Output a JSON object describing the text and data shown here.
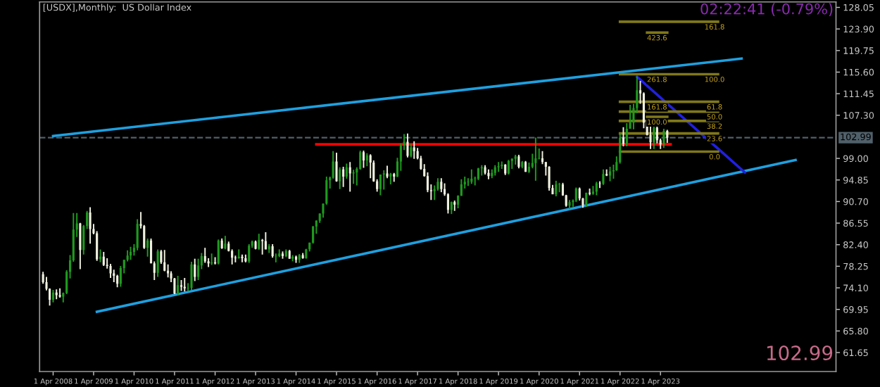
{
  "chart_data": {
    "type": "candlestick",
    "title": "[USDX],Monthly:  US Dollar Index",
    "annotations": [
      "02:22:41 (-0.79%)",
      "102.99",
      {
        "text": "161.8",
        "x": "2024-08",
        "y": 125.3
      },
      {
        "text": "423.6",
        "x": "2023-03",
        "y": 123.2
      },
      {
        "text": "261.8",
        "x": "2023-03",
        "y": 115.2
      },
      {
        "text": "100.0",
        "x": "2024-08",
        "y": 115.2
      },
      {
        "text": "161.8",
        "x": "2023-03",
        "y": 109.9
      },
      {
        "text": "61.8",
        "x": "2024-08",
        "y": 109.9
      },
      {
        "text": "50.0",
        "x": "2024-08",
        "y": 108.0
      },
      {
        "text": "100.0",
        "x": "2023-03",
        "y": 107.0
      },
      {
        "text": "38.2",
        "x": "2024-08",
        "y": 106.2
      },
      {
        "text": "23.6",
        "x": "2024-08",
        "y": 103.8
      },
      {
        "text": "0.0",
        "x": "2024-08",
        "y": 100.3
      }
    ],
    "x": [
      "2008-01",
      "2008-02",
      "2008-03",
      "2008-04",
      "2008-05",
      "2008-06",
      "2008-07",
      "2008-08",
      "2008-09",
      "2008-10",
      "2008-11",
      "2008-12",
      "2009-01",
      "2009-02",
      "2009-03",
      "2009-04",
      "2009-05",
      "2009-06",
      "2009-07",
      "2009-08",
      "2009-09",
      "2009-10",
      "2009-11",
      "2009-12",
      "2010-01",
      "2010-02",
      "2010-03",
      "2010-04",
      "2010-05",
      "2010-06",
      "2010-07",
      "2010-08",
      "2010-09",
      "2010-10",
      "2010-11",
      "2010-12",
      "2011-01",
      "2011-02",
      "2011-03",
      "2011-04",
      "2011-05",
      "2011-06",
      "2011-07",
      "2011-08",
      "2011-09",
      "2011-10",
      "2011-11",
      "2011-12",
      "2012-01",
      "2012-02",
      "2012-03",
      "2012-04",
      "2012-05",
      "2012-06",
      "2012-07",
      "2012-08",
      "2012-09",
      "2012-10",
      "2012-11",
      "2012-12",
      "2013-01",
      "2013-02",
      "2013-03",
      "2013-04",
      "2013-05",
      "2013-06",
      "2013-07",
      "2013-08",
      "2013-09",
      "2013-10",
      "2013-11",
      "2013-12",
      "2014-01",
      "2014-02",
      "2014-03",
      "2014-04",
      "2014-05",
      "2014-06",
      "2014-07",
      "2014-08",
      "2014-09",
      "2014-10",
      "2014-11",
      "2014-12",
      "2015-01",
      "2015-02",
      "2015-03",
      "2015-04",
      "2015-05",
      "2015-06",
      "2015-07",
      "2015-08",
      "2015-09",
      "2015-10",
      "2015-11",
      "2015-12",
      "2016-01",
      "2016-02",
      "2016-03",
      "2016-04",
      "2016-05",
      "2016-06",
      "2016-07",
      "2016-08",
      "2016-09",
      "2016-10",
      "2016-11",
      "2016-12",
      "2017-01",
      "2017-02",
      "2017-03",
      "2017-04",
      "2017-05",
      "2017-06",
      "2017-07",
      "2017-08",
      "2017-09",
      "2017-10",
      "2017-11",
      "2017-12",
      "2018-01",
      "2018-02",
      "2018-03",
      "2018-04",
      "2018-05",
      "2018-06",
      "2018-07",
      "2018-08",
      "2018-09",
      "2018-10",
      "2018-11",
      "2018-12",
      "2019-01",
      "2019-02",
      "2019-03",
      "2019-04",
      "2019-05",
      "2019-06",
      "2019-07",
      "2019-08",
      "2019-09",
      "2019-10",
      "2019-11",
      "2019-12",
      "2020-01",
      "2020-02",
      "2020-03",
      "2020-04",
      "2020-05",
      "2020-06",
      "2020-07",
      "2020-08",
      "2020-09",
      "2020-10",
      "2020-11",
      "2020-12",
      "2021-01",
      "2021-02",
      "2021-03",
      "2021-04",
      "2021-05",
      "2021-06",
      "2021-07",
      "2021-08",
      "2021-09",
      "2021-10",
      "2021-11",
      "2021-12",
      "2022-01",
      "2022-02",
      "2022-03",
      "2022-04",
      "2022-05",
      "2022-06",
      "2022-07",
      "2022-08",
      "2022-09",
      "2022-10",
      "2022-11",
      "2022-12",
      "2023-01",
      "2023-02",
      "2023-03",
      "2023-04",
      "2023-05",
      "2023-06"
    ],
    "ohlc": [
      [
        76.7,
        77.2,
        74.9,
        75.2
      ],
      [
        75.2,
        76.2,
        73.6,
        73.9
      ],
      [
        73.9,
        74.0,
        70.7,
        71.8
      ],
      [
        71.8,
        73.7,
        71.3,
        73.2
      ],
      [
        73.2,
        73.8,
        71.9,
        72.7
      ],
      [
        72.7,
        74.0,
        72.2,
        72.4
      ],
      [
        72.4,
        73.2,
        71.3,
        73.1
      ],
      [
        73.1,
        77.5,
        72.9,
        77.2
      ],
      [
        77.2,
        80.4,
        75.9,
        79.4
      ],
      [
        79.4,
        88.5,
        79.1,
        85.3
      ],
      [
        85.3,
        88.5,
        83.9,
        86.5
      ],
      [
        86.5,
        86.6,
        77.7,
        81.4
      ],
      [
        81.4,
        86.2,
        80.5,
        86.0
      ],
      [
        86.0,
        88.9,
        85.4,
        88.6
      ],
      [
        88.6,
        89.6,
        82.6,
        85.4
      ],
      [
        85.4,
        86.4,
        84.4,
        84.6
      ],
      [
        84.6,
        85.0,
        79.3,
        79.6
      ],
      [
        79.6,
        81.5,
        79.0,
        80.1
      ],
      [
        80.1,
        81.0,
        78.3,
        78.5
      ],
      [
        78.5,
        79.8,
        77.8,
        78.3
      ],
      [
        78.3,
        78.7,
        76.0,
        76.9
      ],
      [
        76.9,
        77.6,
        75.2,
        76.4
      ],
      [
        76.4,
        76.6,
        74.2,
        74.9
      ],
      [
        74.9,
        78.3,
        74.3,
        77.9
      ],
      [
        77.9,
        79.5,
        76.9,
        79.5
      ],
      [
        79.5,
        81.3,
        79.2,
        80.3
      ],
      [
        80.3,
        82.0,
        79.5,
        81.0
      ],
      [
        81.0,
        82.5,
        80.3,
        81.8
      ],
      [
        81.8,
        87.3,
        81.3,
        86.4
      ],
      [
        86.4,
        88.7,
        85.5,
        86.0
      ],
      [
        86.0,
        86.2,
        81.6,
        81.8
      ],
      [
        81.8,
        83.6,
        80.1,
        83.2
      ],
      [
        83.2,
        83.6,
        78.8,
        78.8
      ],
      [
        78.8,
        79.2,
        75.6,
        77.0
      ],
      [
        77.0,
        81.5,
        76.2,
        81.1
      ],
      [
        81.1,
        81.4,
        78.7,
        79.0
      ],
      [
        79.0,
        81.4,
        77.3,
        77.4
      ],
      [
        77.4,
        78.6,
        76.1,
        76.9
      ],
      [
        76.9,
        77.3,
        75.2,
        75.9
      ],
      [
        75.9,
        76.0,
        72.9,
        73.0
      ],
      [
        73.0,
        76.4,
        72.7,
        74.6
      ],
      [
        74.6,
        75.6,
        73.5,
        74.3
      ],
      [
        74.3,
        76.0,
        73.4,
        74.0
      ],
      [
        74.0,
        75.0,
        73.5,
        74.1
      ],
      [
        74.1,
        79.1,
        73.7,
        78.6
      ],
      [
        78.6,
        79.7,
        75.4,
        76.2
      ],
      [
        76.2,
        79.7,
        75.6,
        78.4
      ],
      [
        78.4,
        80.8,
        77.7,
        80.2
      ],
      [
        80.2,
        81.8,
        78.9,
        79.2
      ],
      [
        79.2,
        79.8,
        78.1,
        78.8
      ],
      [
        78.8,
        80.7,
        78.5,
        79.0
      ],
      [
        79.0,
        80.0,
        78.6,
        78.8
      ],
      [
        78.8,
        83.4,
        78.6,
        83.2
      ],
      [
        83.2,
        83.6,
        81.6,
        81.7
      ],
      [
        81.7,
        84.1,
        81.5,
        82.6
      ],
      [
        82.6,
        83.0,
        81.1,
        81.2
      ],
      [
        81.2,
        81.5,
        78.6,
        79.9
      ],
      [
        79.9,
        80.3,
        79.0,
        79.8
      ],
      [
        79.8,
        81.5,
        79.7,
        80.1
      ],
      [
        80.1,
        80.5,
        79.0,
        79.8
      ],
      [
        79.8,
        80.5,
        79.0,
        79.2
      ],
      [
        79.2,
        82.5,
        78.9,
        82.2
      ],
      [
        82.2,
        83.2,
        81.8,
        83.0
      ],
      [
        83.0,
        83.2,
        81.5,
        81.6
      ],
      [
        81.6,
        84.5,
        81.4,
        83.3
      ],
      [
        83.3,
        83.5,
        80.5,
        83.1
      ],
      [
        83.1,
        84.8,
        81.5,
        81.5
      ],
      [
        81.5,
        82.5,
        80.8,
        82.1
      ],
      [
        82.1,
        82.5,
        79.9,
        80.2
      ],
      [
        80.2,
        80.7,
        79.0,
        80.2
      ],
      [
        80.2,
        81.5,
        80.0,
        80.7
      ],
      [
        80.7,
        81.1,
        79.7,
        80.2
      ],
      [
        80.2,
        81.5,
        80.0,
        81.2
      ],
      [
        81.2,
        81.4,
        79.7,
        79.7
      ],
      [
        79.7,
        80.4,
        79.2,
        80.1
      ],
      [
        80.1,
        80.3,
        78.9,
        79.5
      ],
      [
        79.5,
        80.6,
        78.9,
        80.4
      ],
      [
        80.4,
        80.8,
        79.7,
        79.8
      ],
      [
        79.8,
        81.6,
        79.7,
        81.5
      ],
      [
        81.5,
        82.8,
        81.1,
        82.8
      ],
      [
        82.8,
        86.0,
        82.6,
        85.9
      ],
      [
        85.9,
        87.1,
        84.5,
        87.0
      ],
      [
        87.0,
        88.4,
        86.6,
        88.4
      ],
      [
        88.4,
        90.3,
        87.6,
        90.3
      ],
      [
        90.3,
        95.5,
        90.1,
        94.8
      ],
      [
        94.8,
        95.5,
        93.2,
        95.3
      ],
      [
        95.3,
        100.4,
        95.1,
        98.4
      ],
      [
        98.4,
        100.1,
        94.5,
        94.6
      ],
      [
        94.6,
        97.3,
        93.1,
        96.9
      ],
      [
        96.9,
        97.4,
        93.5,
        95.5
      ],
      [
        95.5,
        98.0,
        95.1,
        97.3
      ],
      [
        97.3,
        98.3,
        92.6,
        96.1
      ],
      [
        96.1,
        96.8,
        94.1,
        96.3
      ],
      [
        96.3,
        97.3,
        93.8,
        97.0
      ],
      [
        97.0,
        100.5,
        96.8,
        100.2
      ],
      [
        100.2,
        100.5,
        97.2,
        98.6
      ],
      [
        98.6,
        100.0,
        97.5,
        99.6
      ],
      [
        99.6,
        99.8,
        95.2,
        98.2
      ],
      [
        98.2,
        98.6,
        94.5,
        94.6
      ],
      [
        94.6,
        95.0,
        92.6,
        93.1
      ],
      [
        93.1,
        95.9,
        91.9,
        95.9
      ],
      [
        95.9,
        96.7,
        93.0,
        96.1
      ],
      [
        96.1,
        97.6,
        95.2,
        95.5
      ],
      [
        95.5,
        96.2,
        94.0,
        96.0
      ],
      [
        96.0,
        96.2,
        94.5,
        95.5
      ],
      [
        95.5,
        99.1,
        95.4,
        98.4
      ],
      [
        98.4,
        101.9,
        96.6,
        101.5
      ],
      [
        101.5,
        103.7,
        100.6,
        102.2
      ],
      [
        102.2,
        103.8,
        99.2,
        99.5
      ],
      [
        99.5,
        101.8,
        99.2,
        101.1
      ],
      [
        101.1,
        102.3,
        98.9,
        100.4
      ],
      [
        100.4,
        101.0,
        98.8,
        99.0
      ],
      [
        99.0,
        99.5,
        96.8,
        97.0
      ],
      [
        97.0,
        97.9,
        95.5,
        95.6
      ],
      [
        95.6,
        96.3,
        92.5,
        92.9
      ],
      [
        92.9,
        94.0,
        91.0,
        92.7
      ],
      [
        92.7,
        93.8,
        91.0,
        93.1
      ],
      [
        93.1,
        95.2,
        92.8,
        94.5
      ],
      [
        94.5,
        95.2,
        92.5,
        93.1
      ],
      [
        93.1,
        94.2,
        91.8,
        92.1
      ],
      [
        92.1,
        92.3,
        88.4,
        89.1
      ],
      [
        89.1,
        90.7,
        88.3,
        90.6
      ],
      [
        90.6,
        90.9,
        88.9,
        90.1
      ],
      [
        90.1,
        91.9,
        89.4,
        91.8
      ],
      [
        91.8,
        95.0,
        91.8,
        94.0
      ],
      [
        94.0,
        95.5,
        93.2,
        94.5
      ],
      [
        94.5,
        95.2,
        93.7,
        94.5
      ],
      [
        94.5,
        96.9,
        94.1,
        95.1
      ],
      [
        95.1,
        95.5,
        93.8,
        95.1
      ],
      [
        95.1,
        97.2,
        94.8,
        97.1
      ],
      [
        97.1,
        97.7,
        95.7,
        97.3
      ],
      [
        97.3,
        97.7,
        95.9,
        96.2
      ],
      [
        96.2,
        96.9,
        95.0,
        95.6
      ],
      [
        95.6,
        96.9,
        95.2,
        96.2
      ],
      [
        96.2,
        97.7,
        95.7,
        97.3
      ],
      [
        97.3,
        98.3,
        96.4,
        97.5
      ],
      [
        97.5,
        98.4,
        97.0,
        97.8
      ],
      [
        97.8,
        97.9,
        95.8,
        96.1
      ],
      [
        96.1,
        98.7,
        95.9,
        98.5
      ],
      [
        98.5,
        99.0,
        97.0,
        98.9
      ],
      [
        98.9,
        99.7,
        97.8,
        99.4
      ],
      [
        99.4,
        99.7,
        97.1,
        97.4
      ],
      [
        97.4,
        98.5,
        97.1,
        98.3
      ],
      [
        98.3,
        98.5,
        96.4,
        96.4
      ],
      [
        96.4,
        98.2,
        96.2,
        97.4
      ],
      [
        97.4,
        99.9,
        97.1,
        98.1
      ],
      [
        98.1,
        103.0,
        94.7,
        99.0
      ],
      [
        99.0,
        100.9,
        98.8,
        99.0
      ],
      [
        99.0,
        100.4,
        97.9,
        98.3
      ],
      [
        98.3,
        98.3,
        95.7,
        97.4
      ],
      [
        97.4,
        97.5,
        92.8,
        93.3
      ],
      [
        93.3,
        93.9,
        92.1,
        92.1
      ],
      [
        92.1,
        94.7,
        91.7,
        94.0
      ],
      [
        94.0,
        94.3,
        92.5,
        94.0
      ],
      [
        94.0,
        94.3,
        91.8,
        91.9
      ],
      [
        91.9,
        92.0,
        89.7,
        89.9
      ],
      [
        89.9,
        91.0,
        89.2,
        90.6
      ],
      [
        90.6,
        91.1,
        89.7,
        90.9
      ],
      [
        90.9,
        93.4,
        90.6,
        93.2
      ],
      [
        93.2,
        93.4,
        90.9,
        91.3
      ],
      [
        91.3,
        91.4,
        89.5,
        90.0
      ],
      [
        90.0,
        92.4,
        89.7,
        92.4
      ],
      [
        92.4,
        93.2,
        91.9,
        92.2
      ],
      [
        92.2,
        93.7,
        92.0,
        92.6
      ],
      [
        92.6,
        94.5,
        91.9,
        94.2
      ],
      [
        94.2,
        94.6,
        93.3,
        94.1
      ],
      [
        94.1,
        96.9,
        93.9,
        96.0
      ],
      [
        96.0,
        96.9,
        95.6,
        95.7
      ],
      [
        95.7,
        97.4,
        94.6,
        96.5
      ],
      [
        96.5,
        97.8,
        95.1,
        96.7
      ],
      [
        96.7,
        99.4,
        96.6,
        98.3
      ],
      [
        98.3,
        103.9,
        98.0,
        103.0
      ],
      [
        103.0,
        105.0,
        101.3,
        101.8
      ],
      [
        101.8,
        105.8,
        101.3,
        104.7
      ],
      [
        104.7,
        109.3,
        104.7,
        105.9
      ],
      [
        105.9,
        109.5,
        104.6,
        108.7
      ],
      [
        108.7,
        114.8,
        107.7,
        112.1
      ],
      [
        112.1,
        113.9,
        109.5,
        111.5
      ],
      [
        111.5,
        111.7,
        104.8,
        105.9
      ],
      [
        105.9,
        106.0,
        103.4,
        103.5
      ],
      [
        103.5,
        105.6,
        100.8,
        102.1
      ],
      [
        102.1,
        105.4,
        100.8,
        104.9
      ],
      [
        104.9,
        105.9,
        101.9,
        102.5
      ],
      [
        102.5,
        102.8,
        100.8,
        101.7
      ],
      [
        101.7,
        104.7,
        101.0,
        104.3
      ],
      [
        104.3,
        104.5,
        102.0,
        102.99
      ]
    ],
    "series": [
      {
        "type": "line",
        "color": "#1ea0e0",
        "x": [
          "2008-04",
          "2025-04"
        ],
        "values": [
          103.3,
          118.2
        ]
      },
      {
        "type": "line",
        "color": "#1ea0e0",
        "x": [
          "2009-05",
          "2026-08"
        ],
        "values": [
          69.5,
          98.7
        ]
      },
      {
        "type": "line",
        "color": "#2020e0",
        "x": [
          "2022-09",
          "2025-05"
        ],
        "values": [
          114.7,
          96.3
        ]
      },
      {
        "type": "line",
        "color": "#ff0000",
        "x": [
          "2014-10",
          "2023-07"
        ],
        "values": [
          101.7,
          101.7
        ]
      },
      {
        "type": "line",
        "color": "#807818",
        "x": [
          "2022-04",
          "2024-09"
        ],
        "values": [
          125.3,
          125.3
        ]
      },
      {
        "type": "line",
        "color": "#807818",
        "x": [
          "2022-12",
          "2023-06"
        ],
        "values": [
          123.2,
          123.2
        ]
      },
      {
        "type": "line",
        "color": "#807818",
        "x": [
          "2022-12",
          "2023-06"
        ],
        "values": [
          107.0,
          107.0
        ]
      },
      {
        "type": "line",
        "color": "#807818",
        "x": [
          "2022-04",
          "2024-09"
        ],
        "values": [
          115.2,
          115.2
        ]
      },
      {
        "type": "line",
        "color": "#807818",
        "x": [
          "2022-04",
          "2024-09"
        ],
        "values": [
          109.9,
          109.9
        ]
      },
      {
        "type": "line",
        "color": "#807818",
        "x": [
          "2022-04",
          "2024-09"
        ],
        "values": [
          108.0,
          108.0
        ]
      },
      {
        "type": "line",
        "color": "#807818",
        "x": [
          "2022-04",
          "2024-09"
        ],
        "values": [
          106.2,
          106.2
        ]
      },
      {
        "type": "line",
        "color": "#807818",
        "x": [
          "2022-04",
          "2024-09"
        ],
        "values": [
          103.8,
          103.8
        ]
      },
      {
        "type": "line",
        "color": "#807818",
        "x": [
          "2022-04",
          "2024-09"
        ],
        "values": [
          100.3,
          100.3
        ]
      }
    ],
    "ref_lines": [
      {
        "axis": "y",
        "value": 102.99,
        "label": "102.99",
        "color": "#50606a",
        "line_style": "dashed"
      }
    ],
    "xlim": [
      "2007-12-01",
      "2027-08"
    ],
    "xticks": [
      {
        "value": "2008-04-01",
        "label": "1 Apr 2008"
      },
      {
        "value": "2009-04-01",
        "label": "1 Apr 2009"
      },
      {
        "value": "2010-04-01",
        "label": "1 Apr 2010"
      },
      {
        "value": "2011-04-01",
        "label": "1 Apr 2011"
      },
      {
        "value": "2012-04-01",
        "label": "1 Apr 2012"
      },
      {
        "value": "2013-04-01",
        "label": "1 Apr 2013"
      },
      {
        "value": "2014-04-01",
        "label": "1 Apr 2014"
      },
      {
        "value": "2015-04-01",
        "label": "1 Apr 2015"
      },
      {
        "value": "2016-04-01",
        "label": "1 Apr 2016"
      },
      {
        "value": "2017-04-01",
        "label": "1 Apr 2017"
      },
      {
        "value": "2018-04-01",
        "label": "1 Apr 2018"
      },
      {
        "value": "2019-04-01",
        "label": "1 Apr 2019"
      },
      {
        "value": "2020-04-01",
        "label": "1 Apr 2020"
      },
      {
        "value": "2021-04-01",
        "label": "1 Apr 2021"
      },
      {
        "value": "2022-04-01",
        "label": "1 Apr 2022"
      },
      {
        "value": "2023-04-01",
        "label": "1 Apr 2023"
      }
    ],
    "ylim": [
      58.0,
      129.1
    ],
    "yticks": [
      {
        "value": 61.65,
        "label": "61.65"
      },
      {
        "value": 65.8,
        "label": "65.80"
      },
      {
        "value": 69.95,
        "label": "69.95"
      },
      {
        "value": 74.1,
        "label": "74.10"
      },
      {
        "value": 78.25,
        "label": "78.25"
      },
      {
        "value": 82.4,
        "label": "82.40"
      },
      {
        "value": 86.55,
        "label": "86.55"
      },
      {
        "value": 90.7,
        "label": "90.70"
      },
      {
        "value": 94.85,
        "label": "94.85"
      },
      {
        "value": 99.0,
        "label": "99.00"
      },
      {
        "value": 107.3,
        "label": "107.30"
      },
      {
        "value": 111.45,
        "label": "111.45"
      },
      {
        "value": 115.6,
        "label": "115.60"
      },
      {
        "value": 119.75,
        "label": "119.75"
      },
      {
        "value": 123.9,
        "label": "123.90"
      },
      {
        "value": 128.05,
        "label": "128.05"
      }
    ]
  }
}
